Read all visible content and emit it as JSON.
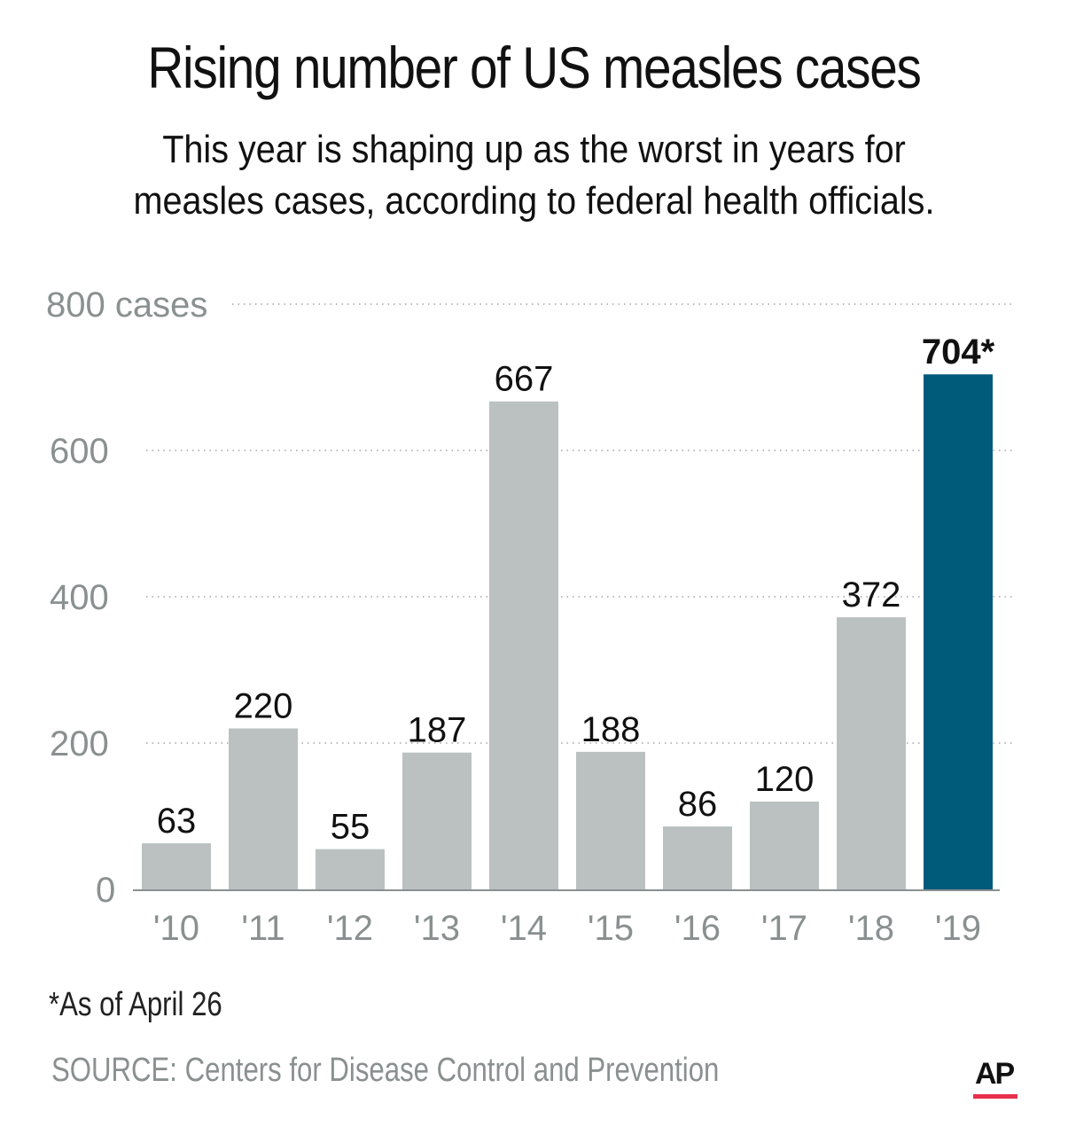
{
  "chart_data": {
    "type": "bar",
    "title": "Rising number of US measles cases",
    "subtitle": "This year is shaping up as the worst in years for measles cases, according to federal health officials.",
    "subtitle_lines": [
      "This year is shaping up as the worst in years for",
      "measles cases, according to federal health officials."
    ],
    "categories": [
      "'10",
      "'11",
      "'12",
      "'13",
      "'14",
      "'15",
      "'16",
      "'17",
      "'18",
      "'19"
    ],
    "values": [
      63,
      220,
      55,
      187,
      667,
      188,
      86,
      120,
      372,
      704
    ],
    "data_labels": [
      "63",
      "220",
      "55",
      "187",
      "667",
      "188",
      "86",
      "120",
      "372",
      "704*"
    ],
    "highlight_index": 9,
    "colors": {
      "bar": "#bbc0c0",
      "highlight": "#005a7a",
      "grid": "#a0a6a6",
      "axis": "#8a9090"
    },
    "ylim": [
      0,
      800
    ],
    "yticks": [
      0,
      200,
      400,
      600,
      800
    ],
    "ytick_labels": [
      "0",
      "200",
      "400",
      "600",
      "800 cases"
    ],
    "xlabel": "",
    "ylabel": "cases",
    "grid": true,
    "legend": "none"
  },
  "footnote": "*As of April 26",
  "source": "SOURCE: Centers for Disease Control and Prevention",
  "credit": "AP"
}
